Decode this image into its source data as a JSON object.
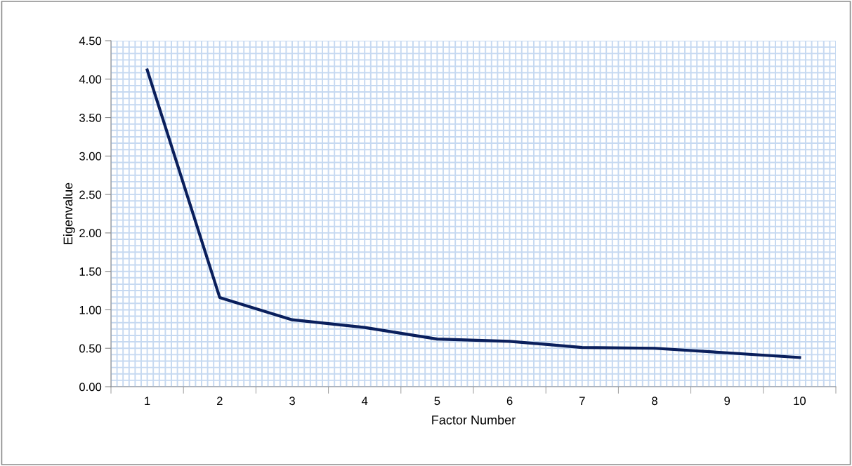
{
  "chart_data": {
    "type": "line",
    "xlabel": "Factor Number",
    "ylabel": "Eigenvalue",
    "categories": [
      "1",
      "2",
      "3",
      "4",
      "5",
      "6",
      "7",
      "8",
      "9",
      "10"
    ],
    "series": [
      {
        "color": "#0a1f5c",
        "values": [
          4.12,
          1.16,
          0.87,
          0.77,
          0.62,
          0.59,
          0.51,
          0.5,
          0.44,
          0.38
        ]
      }
    ],
    "ylim": [
      0,
      4.5
    ],
    "yticks": [
      {
        "value": 0,
        "label": "0.00"
      },
      {
        "value": 0.5,
        "label": "0.50"
      },
      {
        "value": 1,
        "label": "1.00"
      },
      {
        "value": 1.5,
        "label": "1.50"
      },
      {
        "value": 2,
        "label": "2.00"
      },
      {
        "value": 2.5,
        "label": "2.50"
      },
      {
        "value": 3,
        "label": "3.00"
      },
      {
        "value": 3.5,
        "label": "3.50"
      },
      {
        "value": 4,
        "label": "4.00"
      },
      {
        "value": 4.5,
        "label": "4.50"
      }
    ],
    "grid": true,
    "legend": false,
    "marker": "none",
    "line_style": "solid"
  }
}
